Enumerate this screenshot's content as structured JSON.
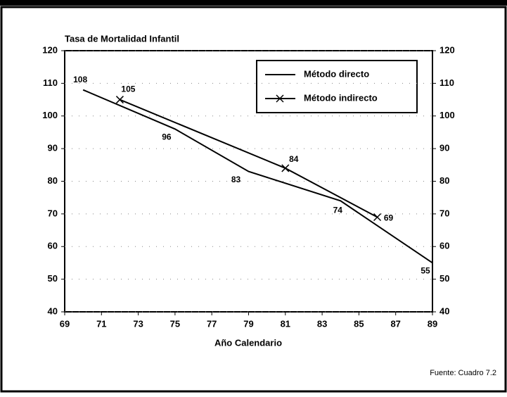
{
  "chart_data": {
    "type": "line",
    "title": "Tasa de Mortalidad Infantil",
    "x_label": "Año Calendario",
    "source": "Fuente: Cuadro 7.2",
    "xlim": [
      69,
      89
    ],
    "xticks": [
      69,
      71,
      73,
      75,
      77,
      79,
      81,
      83,
      85,
      87,
      89
    ],
    "ylim": [
      40,
      120
    ],
    "yticks": [
      40,
      50,
      60,
      70,
      80,
      90,
      100,
      110,
      120
    ],
    "y2lim": [
      40,
      120
    ],
    "y2ticks": [
      40,
      50,
      60,
      70,
      80,
      90,
      100,
      110,
      120
    ],
    "grid": true,
    "legend": "upper right",
    "series": [
      {
        "name": "Método directo",
        "color": "#000000",
        "marker": "none",
        "x": [
          70,
          75,
          79,
          84,
          89
        ],
        "values": [
          108,
          96,
          83,
          74,
          55
        ]
      },
      {
        "name": "Método indirecto",
        "color": "#000000",
        "marker": "x",
        "x": [
          72,
          81,
          86
        ],
        "values": [
          105,
          84,
          69
        ]
      }
    ]
  }
}
